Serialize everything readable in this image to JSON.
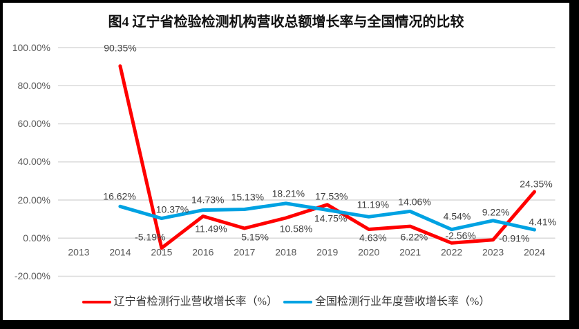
{
  "frame": {
    "page_background": "#000000",
    "chart_background": "#ffffff",
    "gridline_color": "#d9d9d9"
  },
  "chart_data": {
    "type": "line",
    "title": "图4 辽宁省检验检测机构营收总额增长率与全国情况的比较",
    "categories": [
      "2013",
      "2014",
      "2015",
      "2016",
      "2017",
      "2018",
      "2019",
      "2020",
      "2021",
      "2022",
      "2023",
      "2024"
    ],
    "series": [
      {
        "name": "辽宁省检测行业营收增长率（%）",
        "color": "#ff0000",
        "values": [
          null,
          90.35,
          -5.19,
          11.49,
          5.15,
          10.58,
          17.53,
          4.63,
          6.22,
          -2.56,
          -0.91,
          24.35
        ],
        "labels": [
          "",
          "90.35%",
          "-5.19%",
          "11.49%",
          "5.15%",
          "10.58%",
          "17.53%",
          "4.63%",
          "6.22%",
          "-2.56%",
          "-0.91%",
          "24.35%"
        ]
      },
      {
        "name": "全国检测行业年度营收增长率（%）",
        "color": "#00a2e2",
        "values": [
          null,
          16.62,
          10.37,
          14.73,
          15.13,
          18.21,
          14.75,
          11.19,
          14.06,
          4.54,
          9.22,
          4.41
        ],
        "labels": [
          "",
          "16.62%",
          "10.37%",
          "14.73%",
          "15.13%",
          "18.21%",
          "14.75%",
          "11.19%",
          "14.06%",
          "4.54%",
          "9.22%",
          "4.41%"
        ]
      }
    ],
    "ylim": [
      -20,
      100
    ],
    "y_tick_step": 20,
    "y_tick_labels": [
      "100.00%",
      "80.00%",
      "60.00%",
      "40.00%",
      "20.00%",
      "0.00%",
      "-20.00%"
    ],
    "grid": true,
    "legend_position": "bottom"
  }
}
